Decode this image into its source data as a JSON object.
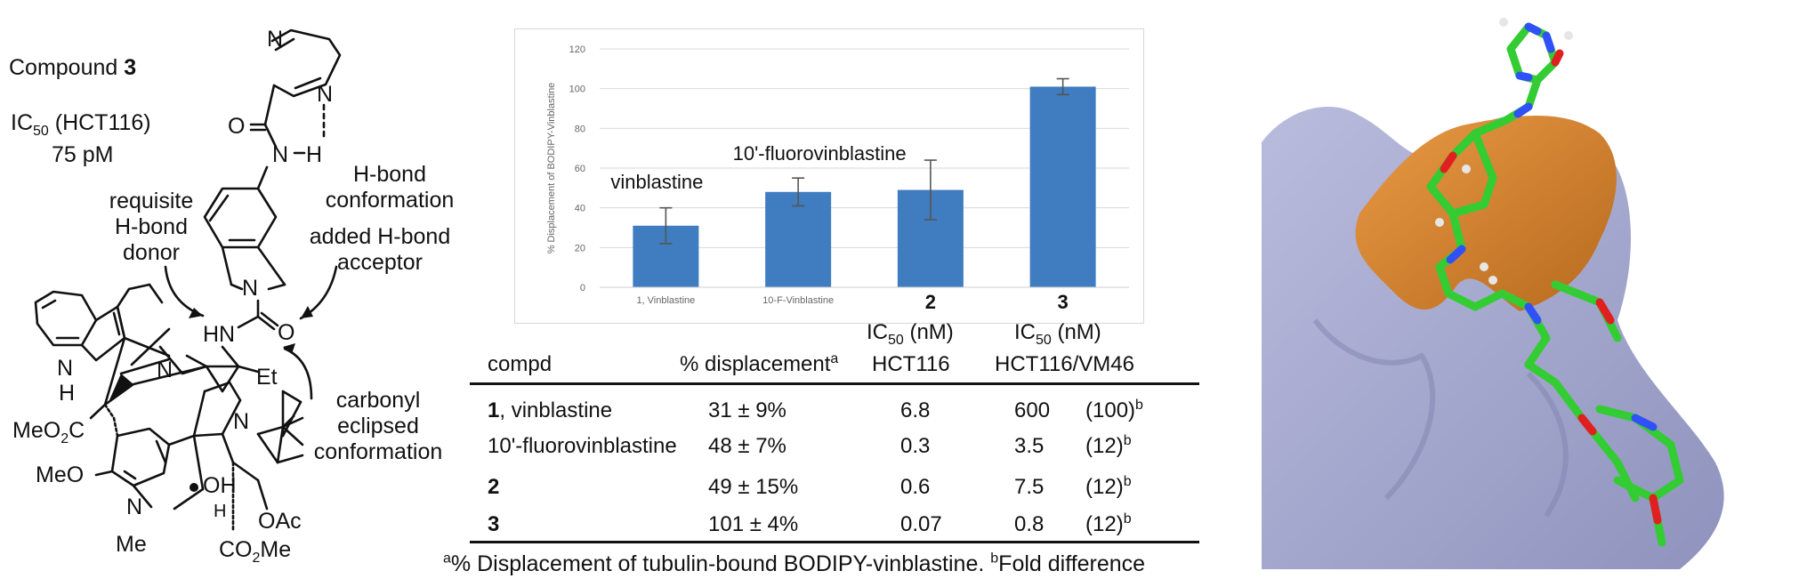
{
  "figure": {
    "compound": {
      "label": "Compound ",
      "number": "3"
    },
    "ic50": {
      "prefix": "IC",
      "sub": "50",
      "cell": " (HCT116)",
      "value": "75 pM"
    },
    "annotations": {
      "requisite": [
        "requisite",
        "H-bond",
        "donor"
      ],
      "hbond_conformation": [
        "H-bond",
        "conformation"
      ],
      "added_acceptor": [
        "added H-bond",
        "acceptor"
      ],
      "carbonyl": [
        "carbonyl",
        "eclipsed",
        "conformation"
      ]
    },
    "atoms": {
      "n_pyrazine_top": "N",
      "n_pyrazine_bottom": "N",
      "o_amide": "O",
      "n_h": "N",
      "h_bond_h": "H",
      "n_isoindoline": "N",
      "hn": "HN",
      "o_urea": "O",
      "n_piperidine": "N",
      "et": "Et",
      "n_indole": "N",
      "h_indole": "H",
      "meo2c": "MeO",
      "meo2c_sub": "2",
      "meo2c_c": "C",
      "meo": "MeO",
      "n_vindoline": "N",
      "n_me": "Me",
      "n_right": "N",
      "oh": "OH",
      "h_small": "H",
      "oac": "OAc",
      "co2me": "CO",
      "co2me_sub": "2",
      "co2me_me": "Me"
    }
  },
  "chart_data": {
    "type": "bar",
    "title": "",
    "xlabel": "",
    "ylabel": "% Displacement of BODIPY-Vinblastine",
    "ylim": [
      0,
      120
    ],
    "yticks": [
      "0",
      "20",
      "40",
      "60",
      "80",
      "100",
      "120"
    ],
    "categories": [
      "1, Vinblastine",
      "10-F-Vinblastine",
      "2",
      "3"
    ],
    "values": [
      31,
      48,
      49,
      101
    ],
    "errors": [
      9,
      7,
      15,
      4
    ],
    "annotations": [
      "vinblastine",
      "10'-fluorovinblastine",
      "",
      ""
    ],
    "bar_color": "#3f7cc0",
    "grid": true
  },
  "table": {
    "headers": {
      "compd": "compd",
      "displacement": "% displacement",
      "displacement_sup": "a",
      "ic50_a_prefix": "IC",
      "ic50_a_sub": "50",
      "ic50_a_unit": " (nM)",
      "ic50_a_cell": "HCT116",
      "ic50_b_prefix": "IC",
      "ic50_b_sub": "50",
      "ic50_b_unit": " (nM)",
      "ic50_b_cell": "HCT116/VM46"
    },
    "rows": [
      {
        "num": "1",
        "name": ", vinblastine",
        "disp": "31 ± 9%",
        "hct": "6.8",
        "vm": "600",
        "fold": "(100)",
        "sup": "b"
      },
      {
        "num": "",
        "name": "10'-fluorovinblastine",
        "disp": "48 ± 7%",
        "hct": "0.3",
        "vm": "3.5",
        "fold": "(12)",
        "sup": "b"
      },
      {
        "num": "2",
        "name": "",
        "disp": "49 ± 15%",
        "hct": "0.6",
        "vm": "7.5",
        "fold": "(12)",
        "sup": "b"
      },
      {
        "num": "3",
        "name": "",
        "disp": "101 ± 4%",
        "hct": "0.07",
        "vm": "0.8",
        "fold": "(12)",
        "sup": "b"
      }
    ]
  },
  "footnote": {
    "a_sup": "a",
    "a_text": "% Displacement of tubulin-bound BODIPY-vinblastine. ",
    "b_sup": "b",
    "b_text": "Fold difference"
  },
  "protein_image": {
    "surface_color": "#a3a7cc",
    "pocket_color": "#d9822b",
    "ligand_color": "#33cc33"
  }
}
